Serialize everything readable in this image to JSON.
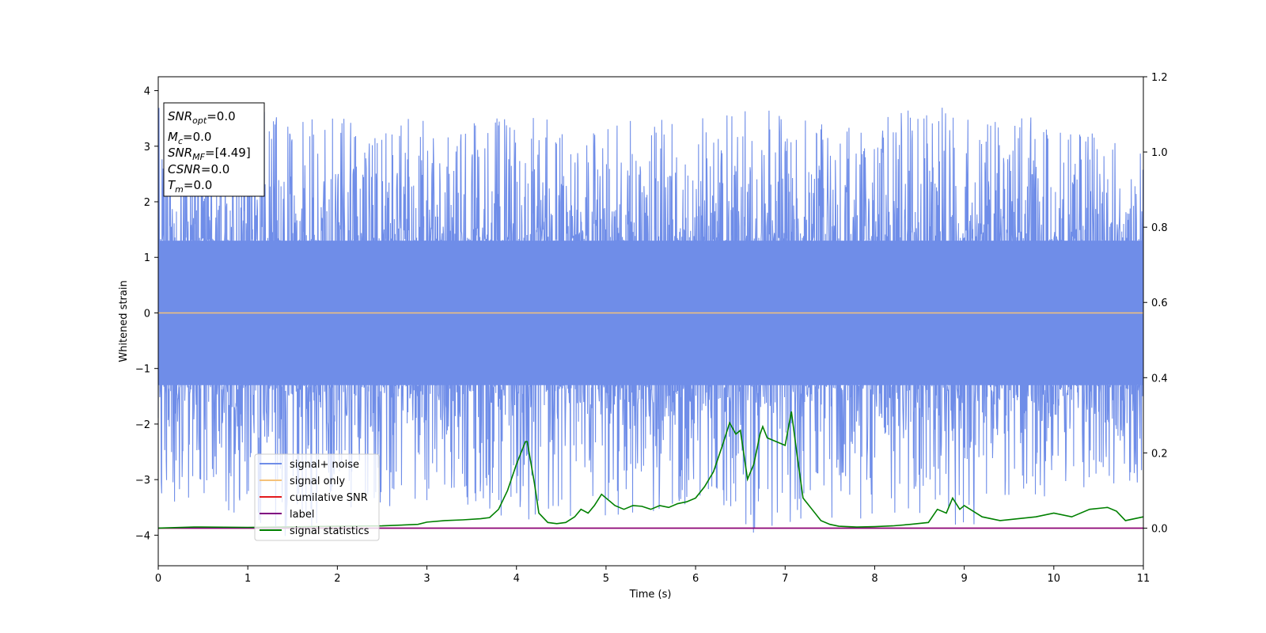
{
  "chart_data": {
    "type": "line",
    "xlabel": "Time (s)",
    "ylabel": "Whitened strain",
    "xlim": [
      0,
      11
    ],
    "ylim": [
      -4.55,
      4.25
    ],
    "y2lim": [
      -0.1,
      1.2
    ],
    "x_ticks": [
      "0",
      "1",
      "2",
      "3",
      "4",
      "5",
      "6",
      "7",
      "8",
      "9",
      "10",
      "11"
    ],
    "y_ticks": [
      "4",
      "3",
      "2",
      "1",
      "0",
      "−1",
      "−2",
      "−3",
      "−4"
    ],
    "y2_ticks": [
      "0.0",
      "0.2",
      "0.4",
      "0.6",
      "0.8",
      "1.0",
      "1.2"
    ],
    "grid": false,
    "legend_position": "lower-left",
    "info_box": {
      "lines": [
        {
          "base": "SNR",
          "sub": "opt",
          "value": "=0.0"
        },
        {
          "base": "M",
          "sub": "c",
          "value": "=0.0"
        },
        {
          "base": "SNR",
          "sub": "MF",
          "value": "=[4.49]"
        },
        {
          "base": "CSNR",
          "sub": "",
          "value": "=0.0"
        },
        {
          "base": "T",
          "sub": "m",
          "value": "=0.0"
        }
      ]
    },
    "series": [
      {
        "name": "signal+ noise",
        "color": "#6f8de8",
        "axis": "left",
        "kind": "noise",
        "envelope": {
          "x": [
            0,
            0.5,
            1.2,
            1.5,
            2.0,
            3.0,
            4.0,
            5.0,
            6.0,
            6.75,
            7.0,
            8.0,
            8.5,
            9.0,
            10.0,
            11.0
          ],
          "max": [
            3.8,
            3.85,
            3.7,
            3.5,
            3.5,
            3.5,
            3.6,
            3.4,
            3.6,
            3.7,
            3.6,
            3.5,
            3.8,
            3.6,
            3.5,
            3.0
          ],
          "min": [
            -3.4,
            -3.6,
            -3.8,
            -4.15,
            -3.6,
            -3.4,
            -3.8,
            -3.8,
            -3.5,
            -4.1,
            -3.8,
            -3.9,
            -3.6,
            -3.9,
            -3.4,
            -3.2
          ]
        }
      },
      {
        "name": "signal only",
        "color": "#f5c27a",
        "axis": "left",
        "x": [
          0,
          11
        ],
        "y": [
          0,
          0
        ]
      },
      {
        "name": "cumilative SNR",
        "color": "#e3191c",
        "axis": "right",
        "x": [
          0,
          11
        ],
        "y": [
          0,
          0
        ]
      },
      {
        "name": "label",
        "color": "#800080",
        "axis": "right",
        "x": [
          0,
          11
        ],
        "y": [
          0,
          0
        ]
      },
      {
        "name": "signal statistics",
        "color": "#008000",
        "axis": "right",
        "x": [
          0,
          0.4,
          1.0,
          2.0,
          2.5,
          2.9,
          3.0,
          3.2,
          3.4,
          3.6,
          3.7,
          3.8,
          3.9,
          4.0,
          4.1,
          4.12,
          4.2,
          4.25,
          4.35,
          4.45,
          4.55,
          4.65,
          4.72,
          4.8,
          4.87,
          4.95,
          5.0,
          5.1,
          5.2,
          5.3,
          5.4,
          5.5,
          5.6,
          5.7,
          5.8,
          5.9,
          6.0,
          6.1,
          6.2,
          6.3,
          6.38,
          6.45,
          6.5,
          6.58,
          6.65,
          6.72,
          6.75,
          6.8,
          6.9,
          7.0,
          7.07,
          7.13,
          7.2,
          7.3,
          7.4,
          7.5,
          7.6,
          7.8,
          8.0,
          8.2,
          8.4,
          8.6,
          8.7,
          8.8,
          8.87,
          8.95,
          9.0,
          9.2,
          9.4,
          9.6,
          9.8,
          10.0,
          10.2,
          10.4,
          10.6,
          10.7,
          10.8,
          11.0
        ],
        "y": [
          0.0,
          0.003,
          0.002,
          0.005,
          0.006,
          0.01,
          0.016,
          0.02,
          0.022,
          0.025,
          0.028,
          0.05,
          0.1,
          0.17,
          0.23,
          0.23,
          0.12,
          0.04,
          0.015,
          0.012,
          0.015,
          0.03,
          0.05,
          0.04,
          0.06,
          0.09,
          0.08,
          0.06,
          0.05,
          0.06,
          0.058,
          0.05,
          0.06,
          0.055,
          0.065,
          0.07,
          0.08,
          0.11,
          0.15,
          0.22,
          0.28,
          0.25,
          0.26,
          0.13,
          0.17,
          0.25,
          0.27,
          0.24,
          0.23,
          0.22,
          0.31,
          0.2,
          0.08,
          0.05,
          0.02,
          0.01,
          0.005,
          0.003,
          0.004,
          0.006,
          0.01,
          0.015,
          0.05,
          0.04,
          0.08,
          0.05,
          0.06,
          0.03,
          0.02,
          0.025,
          0.03,
          0.04,
          0.03,
          0.05,
          0.055,
          0.045,
          0.02,
          0.03
        ]
      }
    ]
  }
}
